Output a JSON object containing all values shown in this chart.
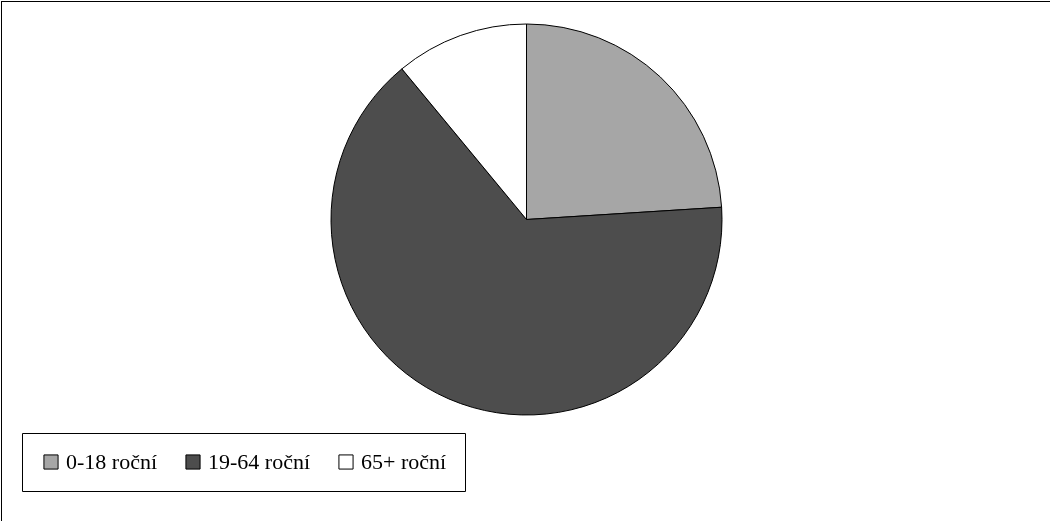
{
  "chart_data": {
    "type": "pie",
    "categories": [
      "0-18 roční",
      "19-64 roční",
      "65+ roční"
    ],
    "values": [
      24,
      65,
      11
    ],
    "colors": [
      "#a6a6a6",
      "#4d4d4d",
      "#ffffff"
    ],
    "legend": "bottom"
  }
}
